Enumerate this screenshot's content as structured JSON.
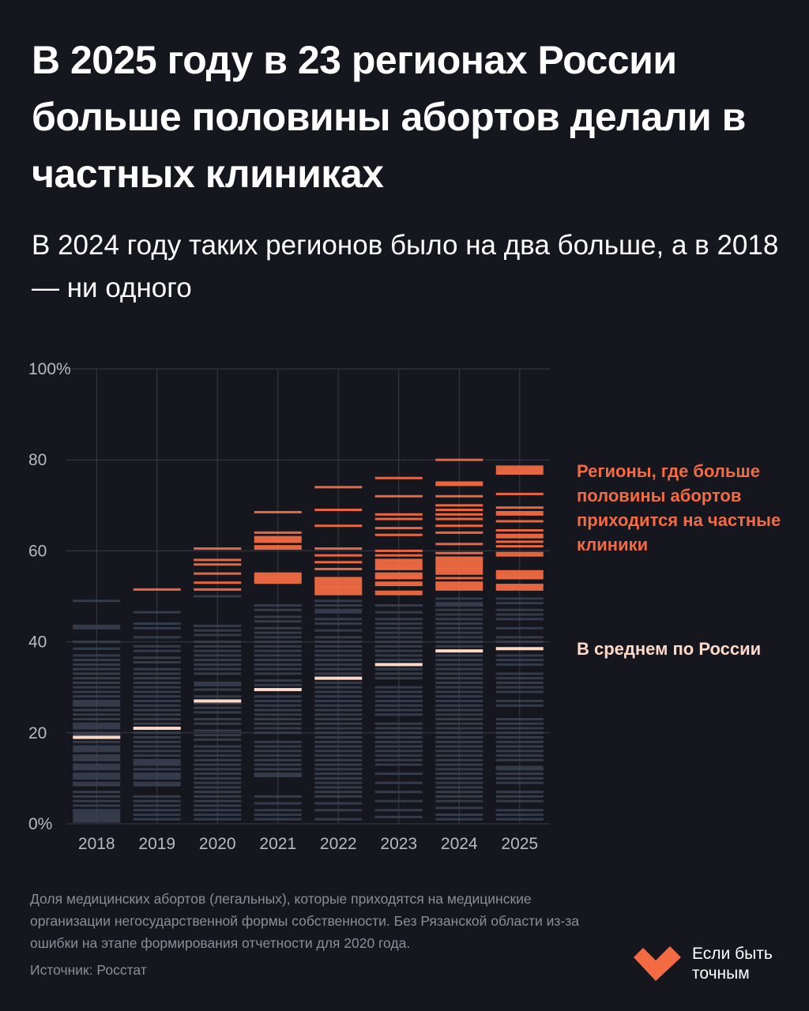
{
  "title": "В 2025 году в 23 регионах России больше половины абортов делали в частных клиниках",
  "subtitle": "В 2024 году таких регионов было на два больше, а в 2018 — ни одного",
  "annotations": {
    "private_majority": "Регионы, где больше половины абортов приходится на частные клиники",
    "average": "В среднем по России"
  },
  "footnote": "Доля медицинских абортов (легальных), которые приходятся на медицинские организации негосударственной формы собственности. Без Рязанской области из-за ошибки на этапе формирования отчетности для 2020 года.",
  "source": "Источник: Росстат",
  "brand": {
    "name_line1": "Если быть",
    "name_line2": "точным"
  },
  "colors": {
    "background": "#16161f",
    "region_below_half": "#3a4253",
    "region_above_half": "#f26b43",
    "average": "#ffd9c8",
    "grid": "#3a3a48",
    "axis_text": "#b9b9c4",
    "brand": "#f26b43"
  },
  "chart_data": {
    "type": "strip",
    "title": "",
    "xlabel": "",
    "ylabel": "",
    "ylim": [
      0,
      100
    ],
    "y_ticks": [
      {
        "value": 100,
        "label": "100%"
      },
      {
        "value": 80,
        "label": "80"
      },
      {
        "value": 60,
        "label": "60"
      },
      {
        "value": 40,
        "label": "40"
      },
      {
        "value": 20,
        "label": "20"
      },
      {
        "value": 0,
        "label": "0%"
      }
    ],
    "threshold": 50,
    "categories": [
      "2018",
      "2019",
      "2020",
      "2021",
      "2022",
      "2023",
      "2024",
      "2025"
    ],
    "average": [
      19,
      21,
      27,
      29.5,
      32,
      35,
      38,
      38.5
    ],
    "regions_over_50_count": {
      "2018": 0,
      "2024": 25,
      "2025": 23
    },
    "regions": {
      "2018": [
        49,
        43.5,
        43,
        40,
        38.5,
        37,
        36,
        35,
        34,
        33,
        32,
        31,
        30,
        29,
        28,
        27,
        26.5,
        26,
        25,
        24,
        23,
        22,
        21.5,
        21,
        20,
        19.5,
        18,
        17,
        16.5,
        16,
        15,
        14.5,
        14,
        13,
        12.5,
        12,
        11,
        10.5,
        10,
        9,
        8.5,
        7,
        6,
        5,
        4,
        3,
        2.5,
        2,
        1.5,
        1,
        0.5
      ],
      "2019": [
        51.5,
        46.5,
        44,
        43,
        41,
        39,
        38,
        36.5,
        35.5,
        34,
        33,
        32,
        31,
        30,
        29,
        28,
        27,
        26,
        25,
        24,
        23,
        22,
        21,
        20,
        19,
        18,
        17,
        16,
        15,
        14,
        13.5,
        13,
        12,
        11,
        10.5,
        10,
        9,
        8.5,
        6,
        5,
        4,
        3,
        2,
        1
      ],
      "2020": [
        60.5,
        58,
        57,
        55,
        53,
        51.5,
        50,
        43.5,
        42.5,
        41.5,
        40,
        39,
        38,
        37,
        36,
        35,
        34,
        33,
        31,
        30.5,
        29.5,
        28,
        26.5,
        25.5,
        24.5,
        23,
        22,
        20.5,
        19.5,
        18.5,
        17,
        16,
        15,
        14,
        13,
        12,
        11,
        10,
        9,
        8,
        7,
        6,
        5,
        4,
        3,
        2,
        1
      ],
      "2021": [
        68.5,
        64,
        63,
        62.5,
        62,
        61,
        60.5,
        55,
        54.5,
        54,
        53.5,
        53,
        48,
        47,
        45.5,
        44.5,
        43,
        42,
        41,
        40,
        39,
        38,
        37,
        36,
        35,
        34,
        33,
        31.5,
        30.5,
        28,
        27,
        26,
        25,
        24,
        23,
        22,
        21,
        20,
        18,
        17,
        16,
        15,
        14,
        13,
        12,
        11,
        10.5,
        6,
        4.5,
        3,
        2,
        1
      ],
      "2022": [
        74,
        69,
        65.5,
        60.5,
        59,
        57.5,
        56,
        54,
        53.5,
        53,
        52.5,
        52,
        51.5,
        51,
        50.5,
        49,
        48,
        47,
        46.5,
        45,
        44,
        42.5,
        41,
        40,
        39,
        38,
        37,
        36,
        35,
        34,
        33,
        31,
        30,
        29,
        28,
        27,
        26,
        25,
        24,
        23,
        22,
        21,
        20,
        19,
        18,
        17,
        16,
        15,
        14,
        13,
        12,
        11,
        10,
        9,
        8,
        7,
        6,
        4.5,
        3,
        1
      ],
      "2023": [
        76,
        72,
        68,
        67,
        65,
        63.5,
        60,
        59,
        58,
        57.5,
        57,
        56.5,
        56,
        55,
        54.5,
        54,
        53,
        52.5,
        51,
        50.5,
        48,
        46.5,
        45,
        44,
        43,
        42,
        41,
        40,
        39,
        38,
        37,
        36,
        34,
        33,
        32,
        30,
        29,
        28,
        27,
        26,
        25,
        24,
        22,
        21,
        20,
        19,
        18,
        17,
        16,
        15,
        14,
        13,
        11,
        9,
        7,
        5,
        3,
        1.5
      ],
      "2024": [
        80,
        75,
        74.5,
        72,
        70,
        69,
        68,
        67,
        65.5,
        64,
        61.5,
        59.5,
        58.5,
        58,
        57.5,
        57,
        56.5,
        56,
        55.5,
        55,
        54,
        53,
        52.5,
        52,
        51.5,
        49.5,
        48.5,
        48,
        47,
        46,
        45,
        44,
        43,
        42,
        41,
        40,
        39,
        37,
        36,
        35,
        34,
        33,
        32,
        31,
        30,
        29,
        28,
        27,
        26,
        25,
        24,
        23,
        22,
        21,
        20,
        19,
        18,
        17,
        16,
        15,
        14,
        13,
        12,
        11,
        10,
        9,
        8,
        7,
        6,
        5,
        3.5,
        2,
        1
      ],
      "2025": [
        78.5,
        78,
        77.5,
        77,
        72.5,
        69.5,
        68.5,
        68,
        66.5,
        64.5,
        63.5,
        63,
        62,
        61,
        59.5,
        59,
        55.5,
        55,
        54.5,
        54,
        52.5,
        52,
        51.5,
        49.5,
        48.5,
        47,
        46,
        45,
        43,
        41,
        40,
        37,
        36,
        35,
        33,
        32,
        31,
        30,
        29,
        27,
        26,
        23,
        22,
        21,
        20,
        19,
        18,
        17,
        16,
        15,
        14,
        12.5,
        12,
        11,
        10,
        9,
        7,
        6,
        5,
        3,
        2,
        1
      ]
    }
  }
}
